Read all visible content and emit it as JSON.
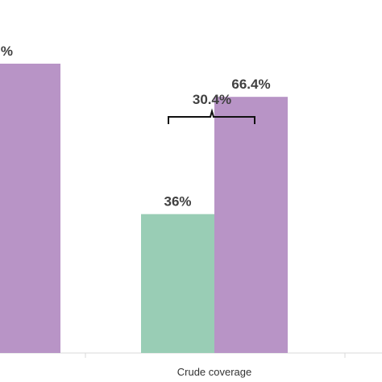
{
  "chart_data": {
    "type": "bar",
    "categories": [
      "",
      "Crude coverage"
    ],
    "series": [
      {
        "values": [
          null,
          36
        ],
        "color": "#99cdb5"
      },
      {
        "values": [
          75,
          66.4
        ],
        "color": "#b894c6"
      }
    ],
    "data_labels": [
      [
        "",
        "36%"
      ],
      [
        "%",
        "66.4%"
      ]
    ],
    "annotation": {
      "category_index": 1,
      "text": "30.4%"
    },
    "ylim": [
      0,
      100
    ],
    "grid": false,
    "legend": "none"
  }
}
